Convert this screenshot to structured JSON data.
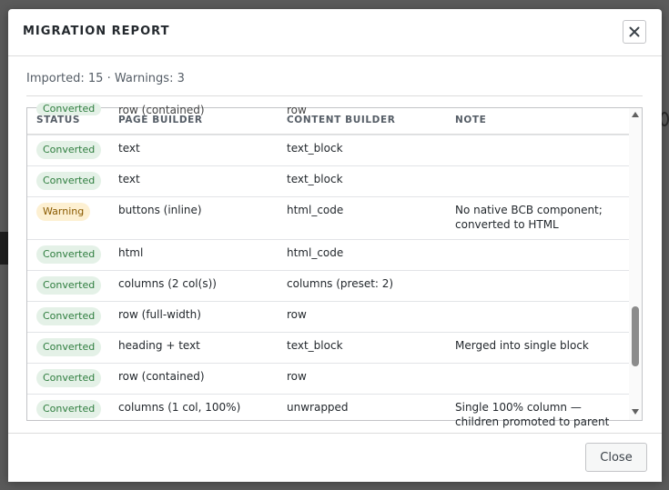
{
  "modal": {
    "title": "MIGRATION REPORT",
    "summary": "Imported: 15 · Warnings: 3",
    "close_button": "Close",
    "close_icon": "close-icon"
  },
  "table": {
    "headers": {
      "status": "STATUS",
      "page_builder": "PAGE BUILDER",
      "content_builder": "CONTENT BUILDER",
      "note": "NOTE"
    },
    "partial_row": {
      "status": "Converted",
      "page_builder": "row (contained)",
      "content_builder": "row"
    },
    "rows": [
      {
        "status": "Converted",
        "type": "ok",
        "page_builder": "text",
        "content_builder": "text_block",
        "note": ""
      },
      {
        "status": "Converted",
        "type": "ok",
        "page_builder": "text",
        "content_builder": "text_block",
        "note": ""
      },
      {
        "status": "Warning",
        "type": "warn",
        "page_builder": "buttons (inline)",
        "content_builder": "html_code",
        "note": "No native BCB component; converted to HTML"
      },
      {
        "status": "Converted",
        "type": "ok",
        "page_builder": "html",
        "content_builder": "html_code",
        "note": ""
      },
      {
        "status": "Converted",
        "type": "ok",
        "page_builder": "columns (2 col(s))",
        "content_builder": "columns (preset: 2)",
        "note": ""
      },
      {
        "status": "Converted",
        "type": "ok",
        "page_builder": "row (full-width)",
        "content_builder": "row",
        "note": ""
      },
      {
        "status": "Converted",
        "type": "ok",
        "page_builder": "heading + text",
        "content_builder": "text_block",
        "note": "Merged into single block"
      },
      {
        "status": "Converted",
        "type": "ok",
        "page_builder": "row (contained)",
        "content_builder": "row",
        "note": ""
      },
      {
        "status": "Converted",
        "type": "ok",
        "page_builder": "columns (1 col, 100%)",
        "content_builder": "unwrapped",
        "note": "Single 100% column — children promoted to parent"
      }
    ]
  }
}
